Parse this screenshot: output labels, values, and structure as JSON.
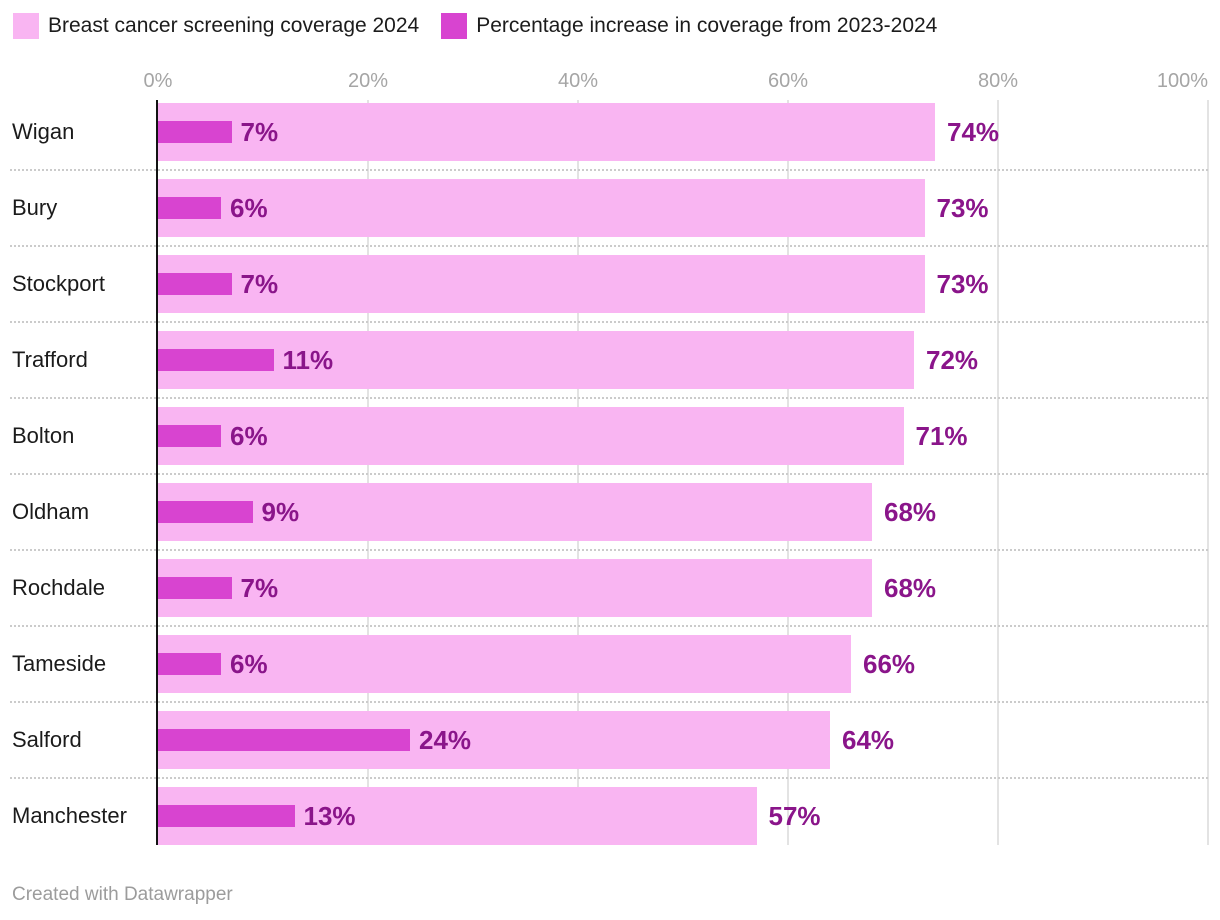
{
  "legend": {
    "items": [
      {
        "label": "Breast cancer screening coverage 2024",
        "color": "#f9b5f2"
      },
      {
        "label": "Percentage increase in coverage from 2023-2024",
        "color": "#d844d0"
      }
    ]
  },
  "footer": {
    "attribution": "Created with Datawrapper"
  },
  "chart_data": {
    "type": "bar",
    "orientation": "horizontal",
    "title": "",
    "categories": [
      "Wigan",
      "Bury",
      "Stockport",
      "Trafford",
      "Bolton",
      "Oldham",
      "Rochdale",
      "Tameside",
      "Salford",
      "Manchester"
    ],
    "series": [
      {
        "name": "Breast cancer screening coverage 2024",
        "color": "#f9b5f2",
        "values": [
          74,
          73,
          73,
          72,
          71,
          68,
          68,
          66,
          64,
          57
        ]
      },
      {
        "name": "Percentage increase in coverage from 2023-2024",
        "color": "#d844d0",
        "values": [
          7,
          6,
          7,
          11,
          6,
          9,
          7,
          6,
          24,
          13
        ]
      }
    ],
    "value_suffix": "%",
    "value_label_color": "#8a158a",
    "x_ticks": [
      "0%",
      "20%",
      "40%",
      "60%",
      "80%",
      "100%"
    ],
    "xlim": [
      0,
      100
    ],
    "grid": true,
    "gridline_color": "#e3e3e3",
    "zero_axis_color": "#131313",
    "legend_position": "top-left"
  }
}
